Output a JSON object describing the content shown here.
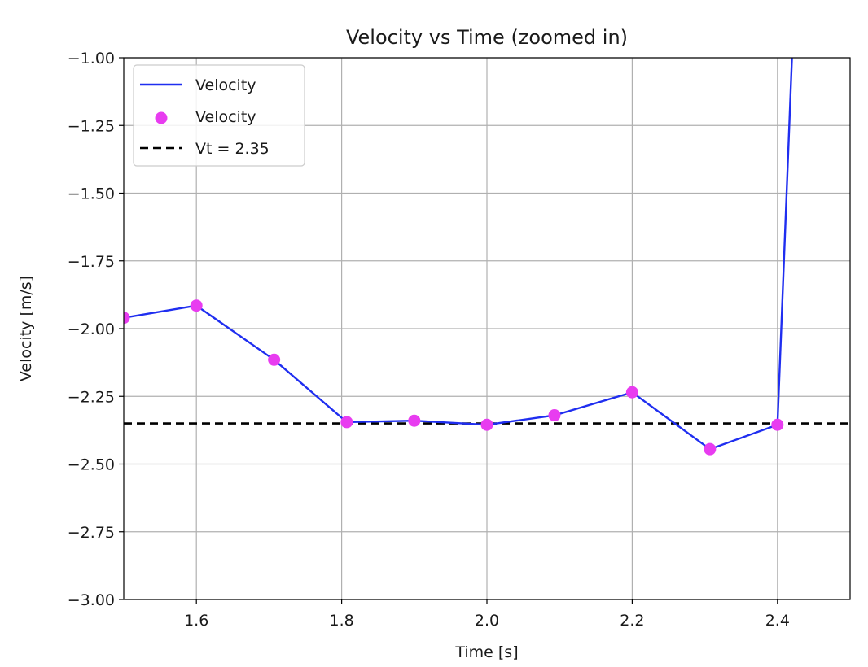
{
  "chart_data": {
    "type": "line",
    "title": "Velocity vs Time (zoomed in)",
    "xlabel": "Time [s]",
    "ylabel": "Velocity [m/s]",
    "xlim": [
      1.5,
      2.5
    ],
    "ylim": [
      -3.0,
      -1.0
    ],
    "x_ticks": [
      1.6,
      1.8,
      2.0,
      2.2,
      2.4
    ],
    "x_tick_labels": [
      "1.6",
      "1.8",
      "2.0",
      "2.2",
      "2.4"
    ],
    "y_ticks": [
      -1.0,
      -1.25,
      -1.5,
      -1.75,
      -2.0,
      -2.25,
      -2.5,
      -2.75,
      -3.0
    ],
    "y_tick_labels": [
      "−1.00",
      "−1.25",
      "−1.50",
      "−1.75",
      "−2.00",
      "−2.25",
      "−2.50",
      "−2.75",
      "−3.00"
    ],
    "grid": true,
    "legend_position": "top-left",
    "series": [
      {
        "name": "Velocity",
        "kind": "line",
        "color": "#1f2ef0",
        "x": [
          1.5,
          1.6,
          1.707,
          1.807,
          1.9,
          2.0,
          2.093,
          2.2,
          2.307,
          2.4,
          2.42
        ],
        "y": [
          -1.96,
          -1.915,
          -2.115,
          -2.345,
          -2.34,
          -2.355,
          -2.32,
          -2.235,
          -2.445,
          -2.355,
          -1.0
        ]
      },
      {
        "name": "Velocity",
        "kind": "scatter",
        "color": "#e83cf0",
        "x": [
          1.5,
          1.6,
          1.707,
          1.807,
          1.9,
          2.0,
          2.093,
          2.2,
          2.307,
          2.4
        ],
        "y": [
          -1.96,
          -1.915,
          -2.115,
          -2.345,
          -2.34,
          -2.355,
          -2.32,
          -2.235,
          -2.445,
          -2.355
        ]
      },
      {
        "name": "Vt = 2.35",
        "kind": "hline",
        "color": "#000000",
        "y": -2.35
      }
    ]
  }
}
